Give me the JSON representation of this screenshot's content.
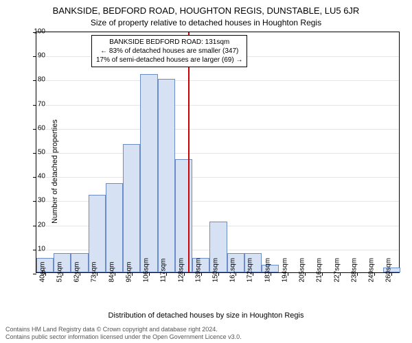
{
  "chart": {
    "type": "histogram",
    "title_main": "BANKSIDE, BEDFORD ROAD, HOUGHTON REGIS, DUNSTABLE, LU5 6JR",
    "title_sub": "Size of property relative to detached houses in Houghton Regis",
    "title_fontsize": 13,
    "subtitle_fontsize": 12,
    "y_axis_label": "Number of detached properties",
    "x_axis_label": "Distribution of detached houses by size in Houghton Regis",
    "axis_label_fontsize": 11,
    "tick_fontsize": 10,
    "background_color": "#ffffff",
    "grid_color": "#e5e5e5",
    "border_color": "#000000",
    "bar_fill_color": "#d6e2f3",
    "bar_border_color": "#6a8cc7",
    "marker_line_color": "#cc0000",
    "marker_value": 131,
    "ylim": [
      0,
      100
    ],
    "ytick_step": 10,
    "yticks": [
      0,
      10,
      20,
      30,
      40,
      50,
      60,
      70,
      80,
      90,
      100
    ],
    "x_categories": [
      "40sqm",
      "51sqm",
      "62sqm",
      "73sqm",
      "84sqm",
      "95sqm",
      "106sqm",
      "117sqm",
      "128sqm",
      "139sqm",
      "150sqm",
      "161sqm",
      "172sqm",
      "183sqm",
      "194sqm",
      "205sqm",
      "216sqm",
      "227sqm",
      "238sqm",
      "249sqm",
      "260sqm"
    ],
    "values": [
      6,
      8,
      8,
      32,
      37,
      53,
      82,
      80,
      47,
      6,
      21,
      8,
      8,
      3,
      0,
      0,
      0,
      0,
      0,
      0,
      2
    ],
    "annotation": {
      "line1": "BANKSIDE BEDFORD ROAD: 131sqm",
      "line2": "← 83% of detached houses are smaller (347)",
      "line3": "17% of semi-detached houses are larger (69) →",
      "fontsize": 10,
      "border_color": "#000000",
      "background_color": "#ffffff"
    },
    "bar_width_ratio": 1.0
  },
  "footer": {
    "line1": "Contains HM Land Registry data © Crown copyright and database right 2024.",
    "line2": "Contains public sector information licensed under the Open Government Licence v3.0.",
    "fontsize": 9,
    "color": "#555555"
  }
}
